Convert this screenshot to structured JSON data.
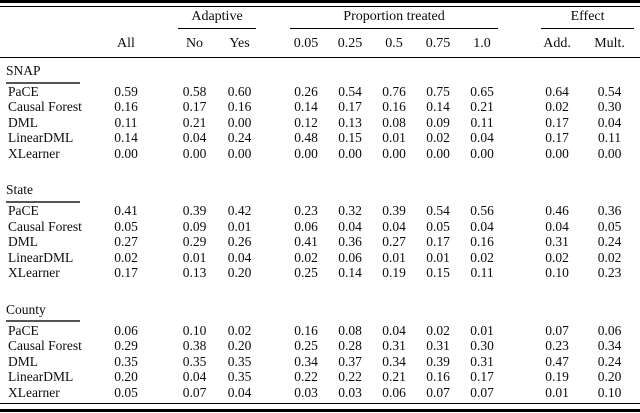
{
  "table": {
    "group_headers": {
      "adaptive": "Adaptive",
      "proportion_treated": "Proportion treated",
      "effect": "Effect"
    },
    "column_headers": [
      "All",
      "No",
      "Yes",
      "0.05",
      "0.25",
      "0.5",
      "0.75",
      "1.0",
      "Add.",
      "Mult."
    ],
    "sections": [
      {
        "name": "SNAP",
        "rows": [
          {
            "method": "PaCE",
            "values": [
              "0.59",
              "0.58",
              "0.60",
              "0.26",
              "0.54",
              "0.76",
              "0.75",
              "0.65",
              "0.64",
              "0.54"
            ]
          },
          {
            "method": "Causal Forest",
            "values": [
              "0.16",
              "0.17",
              "0.16",
              "0.14",
              "0.17",
              "0.16",
              "0.14",
              "0.21",
              "0.02",
              "0.30"
            ]
          },
          {
            "method": "DML",
            "values": [
              "0.11",
              "0.21",
              "0.00",
              "0.12",
              "0.13",
              "0.08",
              "0.09",
              "0.11",
              "0.17",
              "0.04"
            ]
          },
          {
            "method": "LinearDML",
            "values": [
              "0.14",
              "0.04",
              "0.24",
              "0.48",
              "0.15",
              "0.01",
              "0.02",
              "0.04",
              "0.17",
              "0.11"
            ]
          },
          {
            "method": "XLearner",
            "values": [
              "0.00",
              "0.00",
              "0.00",
              "0.00",
              "0.00",
              "0.00",
              "0.00",
              "0.00",
              "0.00",
              "0.00"
            ]
          }
        ]
      },
      {
        "name": "State",
        "rows": [
          {
            "method": "PaCE",
            "values": [
              "0.41",
              "0.39",
              "0.42",
              "0.23",
              "0.32",
              "0.39",
              "0.54",
              "0.56",
              "0.46",
              "0.36"
            ]
          },
          {
            "method": "Causal Forest",
            "values": [
              "0.05",
              "0.09",
              "0.01",
              "0.06",
              "0.04",
              "0.04",
              "0.05",
              "0.04",
              "0.04",
              "0.05"
            ]
          },
          {
            "method": "DML",
            "values": [
              "0.27",
              "0.29",
              "0.26",
              "0.41",
              "0.36",
              "0.27",
              "0.17",
              "0.16",
              "0.31",
              "0.24"
            ]
          },
          {
            "method": "LinearDML",
            "values": [
              "0.02",
              "0.01",
              "0.04",
              "0.02",
              "0.06",
              "0.01",
              "0.01",
              "0.02",
              "0.02",
              "0.02"
            ]
          },
          {
            "method": "XLearner",
            "values": [
              "0.17",
              "0.13",
              "0.20",
              "0.25",
              "0.14",
              "0.19",
              "0.15",
              "0.11",
              "0.10",
              "0.23"
            ]
          }
        ]
      },
      {
        "name": "County",
        "rows": [
          {
            "method": "PaCE",
            "values": [
              "0.06",
              "0.10",
              "0.02",
              "0.16",
              "0.08",
              "0.04",
              "0.02",
              "0.01",
              "0.07",
              "0.06"
            ]
          },
          {
            "method": "Causal Forest",
            "values": [
              "0.29",
              "0.38",
              "0.20",
              "0.25",
              "0.28",
              "0.31",
              "0.31",
              "0.30",
              "0.23",
              "0.34"
            ]
          },
          {
            "method": "DML",
            "values": [
              "0.35",
              "0.35",
              "0.35",
              "0.34",
              "0.37",
              "0.34",
              "0.39",
              "0.31",
              "0.47",
              "0.24"
            ]
          },
          {
            "method": "LinearDML",
            "values": [
              "0.20",
              "0.04",
              "0.35",
              "0.22",
              "0.22",
              "0.21",
              "0.16",
              "0.17",
              "0.19",
              "0.20"
            ]
          },
          {
            "method": "XLearner",
            "values": [
              "0.05",
              "0.07",
              "0.04",
              "0.03",
              "0.03",
              "0.06",
              "0.07",
              "0.07",
              "0.01",
              "0.10"
            ]
          }
        ]
      }
    ],
    "colors": {
      "text": "#0c0c0c",
      "rule": "#000000",
      "section_underline": "#555555",
      "background": "#ffffff"
    }
  }
}
